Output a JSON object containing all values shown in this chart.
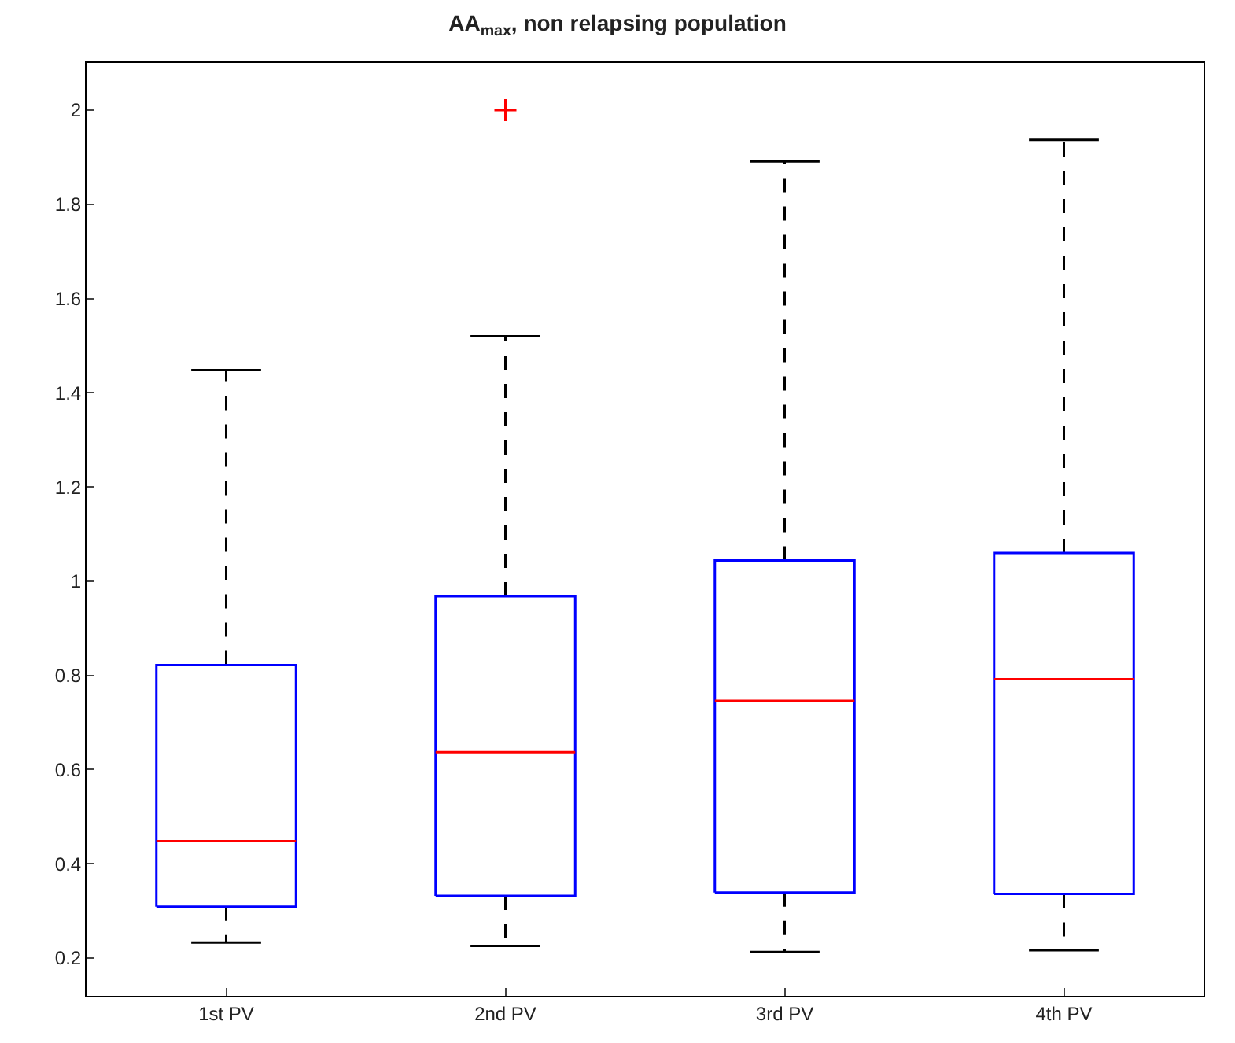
{
  "chart_data": {
    "type": "box",
    "title": "AA$_{max}$, non relapsing population",
    "categories": [
      "1st PV",
      "2nd PV",
      "3rd PV",
      "4th PV"
    ],
    "series": [
      {
        "color": "#0000ff",
        "boxes": [
          {
            "low": 0.233,
            "q1": 0.309,
            "median": 0.448,
            "q3": 0.822,
            "high": 1.448
          },
          {
            "low": 0.226,
            "q1": 0.332,
            "median": 0.637,
            "q3": 0.968,
            "high": 1.52,
            "outliers": [
              2.0
            ]
          },
          {
            "low": 0.213,
            "q1": 0.339,
            "median": 0.746,
            "q3": 1.044,
            "high": 1.891
          },
          {
            "low": 0.217,
            "q1": 0.336,
            "median": 0.792,
            "q3": 1.06,
            "high": 1.937
          }
        ]
      }
    ],
    "ylim": [
      0.12,
      2.1
    ],
    "yticks": [
      0.2,
      0.4,
      0.6,
      0.8,
      1,
      1.2,
      1.4,
      1.6,
      1.8,
      2
    ]
  }
}
